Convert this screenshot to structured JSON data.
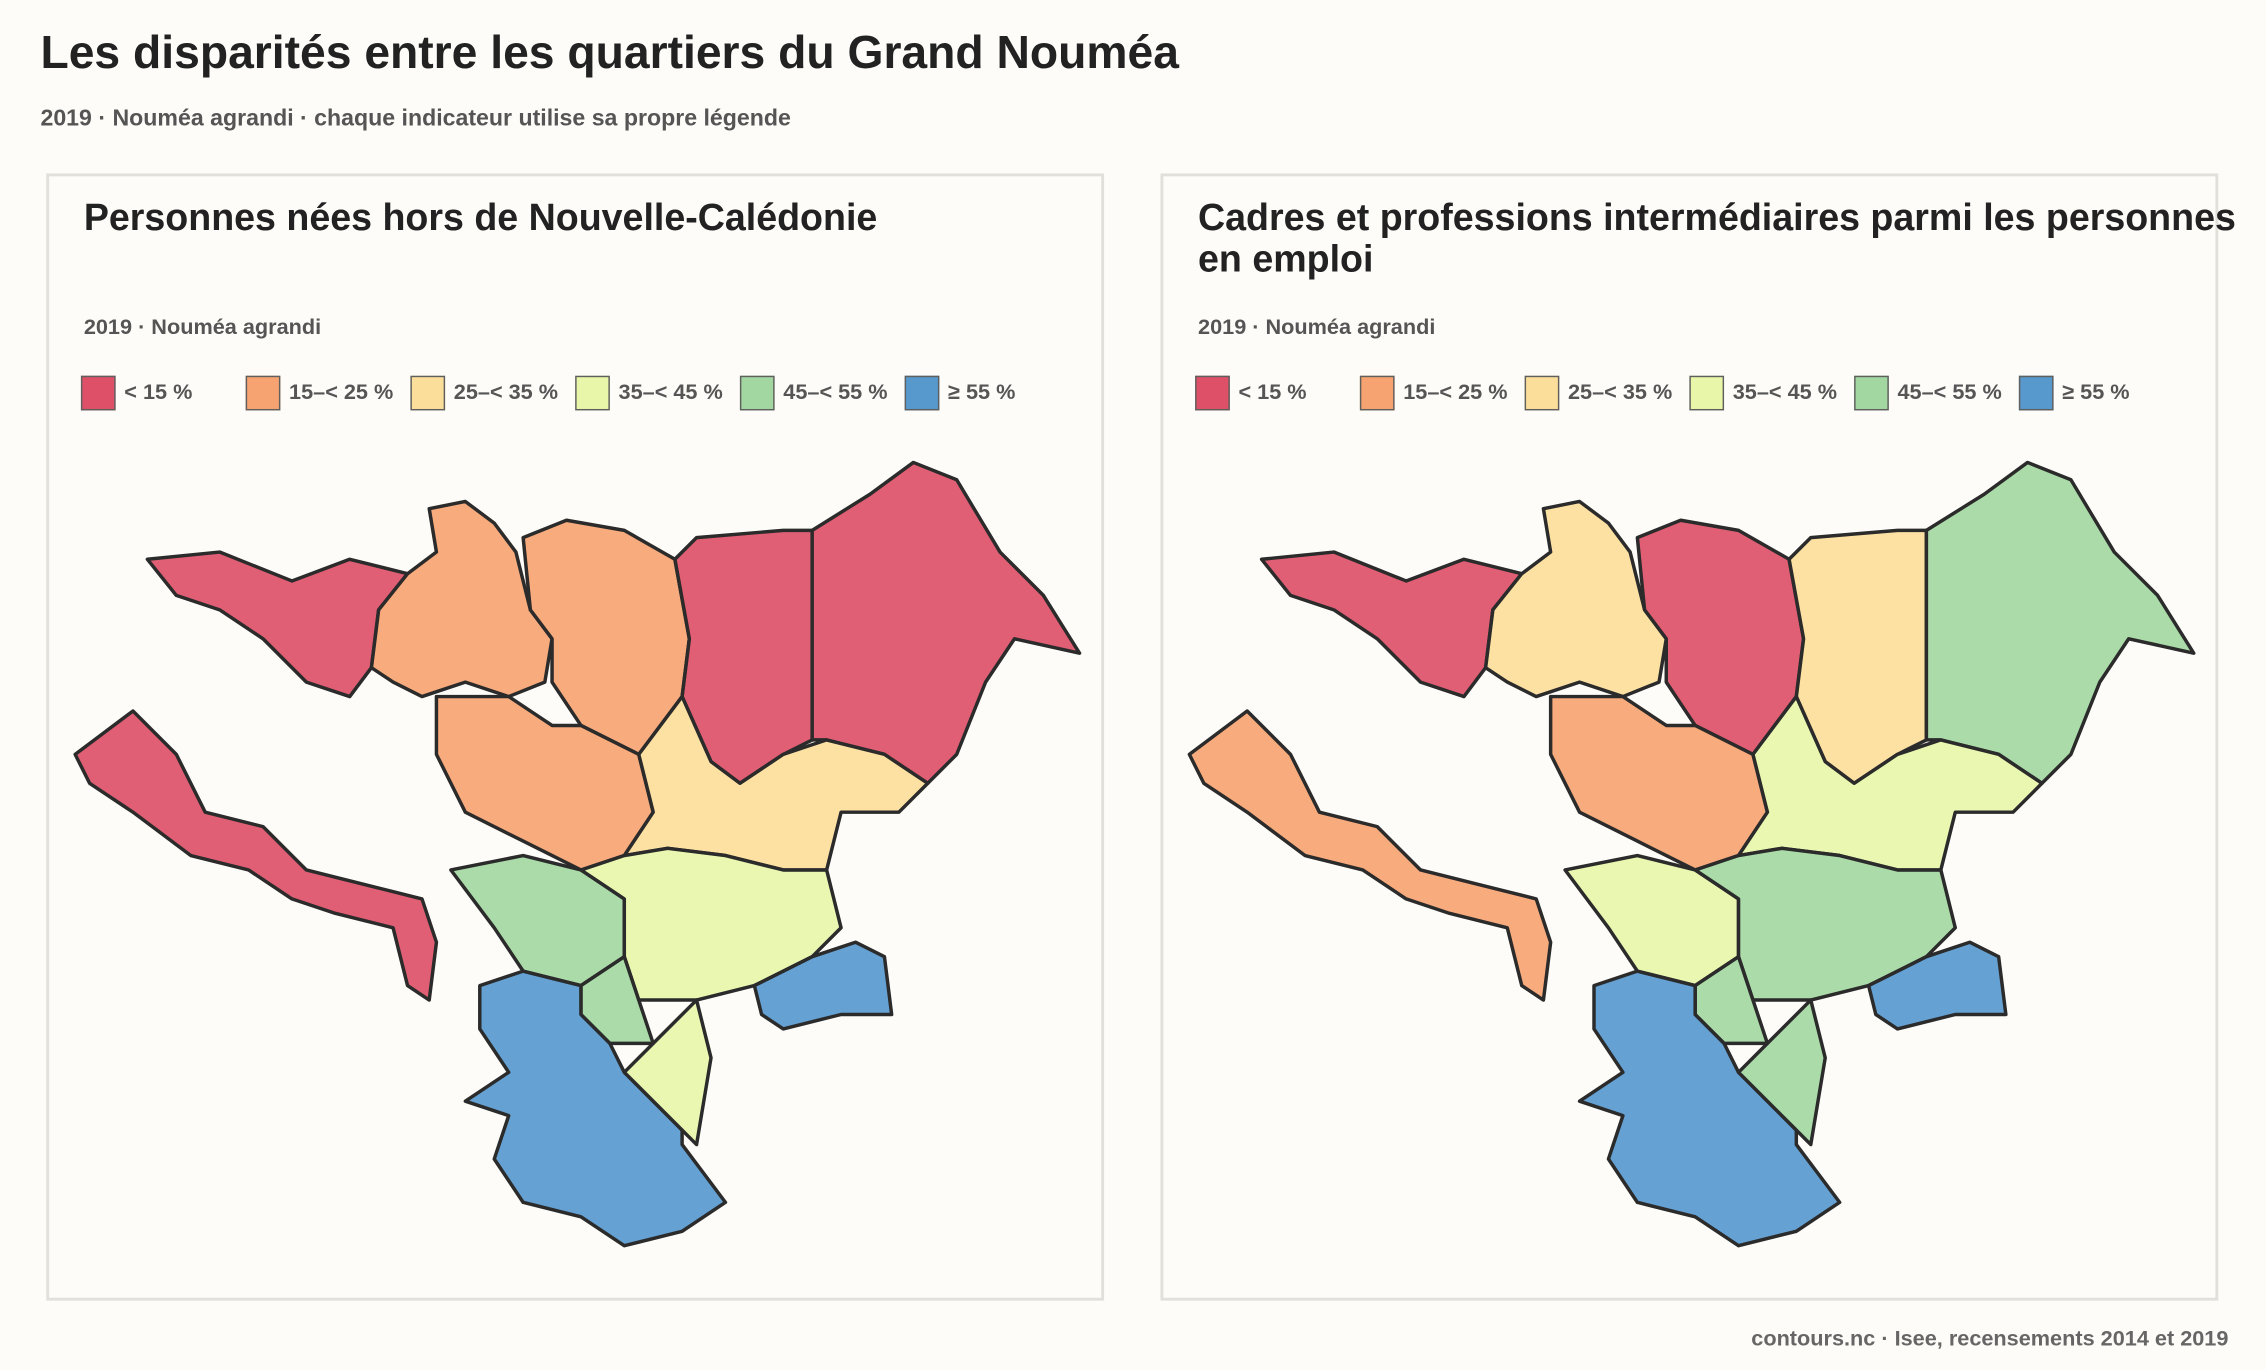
{
  "header": {
    "title": "Les disparités entre les quartiers du Grand Nouméa",
    "subtitle": "2019 · Nouméa agrandi · chaque indicateur utilise sa propre légende"
  },
  "panels": [
    {
      "title": "Personnes nées hors de Nouvelle-Calédonie",
      "subtitle": "2019 · Nouméa agrandi",
      "legend": [
        {
          "label": "< 15 %",
          "color": "#d8324e"
        },
        {
          "label": "15–< 25 %",
          "color": "#f6935a"
        },
        {
          "label": "25–< 35 %",
          "color": "#fcd98b"
        },
        {
          "label": "35–< 45 %",
          "color": "#e3f59c"
        },
        {
          "label": "45–< 55 %",
          "color": "#93d192"
        },
        {
          "label": "≥ 55 %",
          "color": "#3a86c6"
        }
      ]
    },
    {
      "title": "Cadres et professions intermédiaires parmi les personnes en emploi",
      "subtitle": "2019 · Nouméa agrandi",
      "legend": [
        {
          "label": "< 15 %",
          "color": "#d8324e"
        },
        {
          "label": "15–< 25 %",
          "color": "#f6935a"
        },
        {
          "label": "25–< 35 %",
          "color": "#fcd98b"
        },
        {
          "label": "35–< 45 %",
          "color": "#e3f59c"
        },
        {
          "label": "45–< 55 %",
          "color": "#93d192"
        },
        {
          "label": "≥ 55 %",
          "color": "#3a86c6"
        }
      ]
    }
  ],
  "footer": {
    "source": "contours.nc · Isee, recensements 2014 et 2019"
  }
}
